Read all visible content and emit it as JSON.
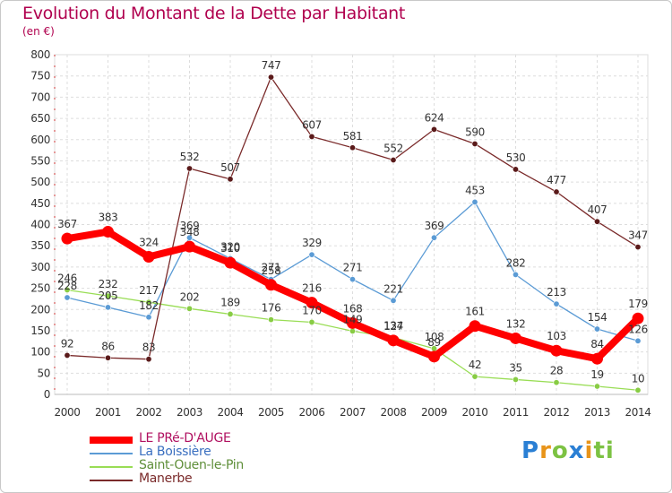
{
  "chart_data": {
    "type": "line",
    "title": "Evolution du Montant de la Dette par Habitant",
    "ylabel": "(en €)",
    "xlabel": "",
    "ylim": [
      0,
      800
    ],
    "yticks": [
      0,
      50,
      100,
      150,
      200,
      250,
      300,
      350,
      400,
      450,
      500,
      550,
      600,
      650,
      700,
      750,
      800
    ],
    "categories": [
      "2000",
      "2001",
      "2002",
      "2003",
      "2004",
      "2005",
      "2006",
      "2007",
      "2008",
      "2009",
      "2010",
      "2011",
      "2012",
      "2013",
      "2014"
    ],
    "grid": true,
    "legend_position": "bottom-left",
    "series": [
      {
        "name": "LE PRé-D'AUGE",
        "color": "#ff0000",
        "marker": "#ff0000",
        "thick": true,
        "labels_above": true,
        "values": [
          367,
          383,
          324,
          348,
          310,
          258,
          216,
          168,
          127,
          89,
          161,
          132,
          103,
          84,
          179
        ]
      },
      {
        "name": "La Boissière",
        "color": "#5b9bd5",
        "marker": "#5b9bd5",
        "thick": false,
        "labels_above": true,
        "values": [
          228,
          205,
          182,
          369,
          320,
          271,
          329,
          271,
          221,
          369,
          453,
          282,
          213,
          154,
          126
        ]
      },
      {
        "name": "Saint-Ouen-le-Pin",
        "color": "#99dd55",
        "marker": "#88cc44",
        "thick": false,
        "labels_above": true,
        "values": [
          246,
          232,
          217,
          202,
          189,
          176,
          170,
          149,
          134,
          108,
          42,
          35,
          28,
          19,
          10
        ]
      },
      {
        "name": "Manerbe",
        "color": "#7a2a2a",
        "marker": "#5a1a1a",
        "thick": false,
        "labels_above": true,
        "values": [
          92,
          86,
          83,
          532,
          507,
          747,
          607,
          581,
          552,
          624,
          590,
          530,
          477,
          407,
          347
        ]
      }
    ]
  },
  "brand": {
    "letters": [
      "P",
      "r",
      "o",
      "x",
      "i",
      "t",
      "i"
    ],
    "colors": [
      "#2a7fd4",
      "#e8941a",
      "#7cc243",
      "#2a7fd4",
      "#e8941a",
      "#7cc243",
      "#7cc243"
    ]
  }
}
